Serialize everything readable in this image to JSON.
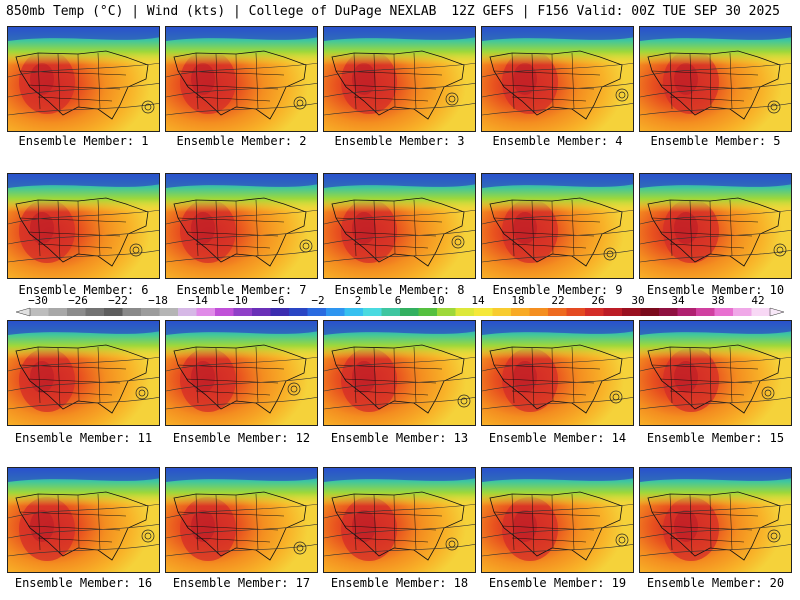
{
  "header": {
    "left": "850mb Temp (°C) | Wind (kts) | College of DuPage NEXLAB",
    "right": "12Z GEFS | F156 Valid: 00Z TUE SEP 30 2025"
  },
  "caption_prefix": "Ensemble Member:",
  "members": [
    "1",
    "2",
    "3",
    "4",
    "5",
    "6",
    "7",
    "8",
    "9",
    "10",
    "11",
    "12",
    "13",
    "14",
    "15",
    "16",
    "17",
    "18",
    "19",
    "20"
  ],
  "colorbar": {
    "ticks": [
      "-30",
      "-26",
      "-22",
      "-18",
      "-14",
      "-10",
      "-6",
      "-2",
      "2",
      "6",
      "10",
      "14",
      "18",
      "22",
      "26",
      "30",
      "34",
      "38",
      "42"
    ],
    "colors": [
      "#bdbdbd",
      "#a8a8a8",
      "#8c8c8c",
      "#737373",
      "#5e5e5e",
      "#8a8a8a",
      "#9c9c9c",
      "#b5b5b5",
      "#d6b8e6",
      "#e08ae8",
      "#c050d8",
      "#9040c8",
      "#6a30b8",
      "#3c2db0",
      "#2a46c4",
      "#2a6be0",
      "#2e95f0",
      "#36c0f0",
      "#4adae0",
      "#3ec6a0",
      "#33b060",
      "#55c040",
      "#9ed83a",
      "#dde83a",
      "#f5e83a",
      "#f8cc30",
      "#f8aa25",
      "#f48e20",
      "#ee6a20",
      "#e44a22",
      "#d42d28",
      "#bc1c26",
      "#9a1020",
      "#7a0a1c",
      "#8e1040",
      "#b02070",
      "#d040a0",
      "#e870d0",
      "#f0a8e8",
      "#f8d8f5"
    ]
  }
}
